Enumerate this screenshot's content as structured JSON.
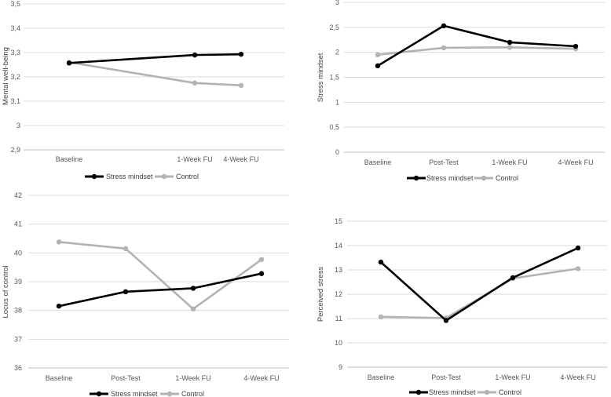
{
  "colors": {
    "stress_mindset": "#000000",
    "control": "#b3b3b3",
    "grid": "#d9d9d9",
    "axis": "#bfbfbf"
  },
  "legend": {
    "series_1": "Stress mindset",
    "series_2": "Control"
  },
  "chart_data": [
    {
      "type": "line",
      "title": "",
      "xlabel": "",
      "ylabel": "Mental well-being",
      "categories": [
        "Baseline",
        "1-Week FU",
        "4-Week FU"
      ],
      "ylim": [
        2.9,
        3.5
      ],
      "yticks": [
        "2,9",
        "3",
        "3,1",
        "3,2",
        "3,3",
        "3,4",
        "3,5"
      ],
      "grid": true,
      "legend_position": "bottom",
      "series": [
        {
          "name": "Stress mindset",
          "values": [
            3.257,
            3.29,
            3.293
          ]
        },
        {
          "name": "Control",
          "values": [
            3.26,
            3.175,
            3.165
          ]
        }
      ]
    },
    {
      "type": "line",
      "title": "",
      "xlabel": "",
      "ylabel": "Stress mindset",
      "categories": [
        "Baseline",
        "Post-Test",
        "1-Week FU",
        "4-Week FU"
      ],
      "ylim": [
        0,
        3
      ],
      "yticks": [
        "0",
        "0,5",
        "1",
        "1,5",
        "2",
        "2,5",
        "3"
      ],
      "grid": true,
      "legend_position": "bottom",
      "series": [
        {
          "name": "Stress mindset",
          "values": [
            1.73,
            2.53,
            2.2,
            2.12
          ]
        },
        {
          "name": "Control",
          "values": [
            1.95,
            2.09,
            2.1,
            2.07
          ]
        }
      ]
    },
    {
      "type": "line",
      "title": "",
      "xlabel": "",
      "ylabel": "Locus of control",
      "categories": [
        "Baseline",
        "Post-Test",
        "1-Week FU",
        "4-Week FU"
      ],
      "ylim": [
        36,
        42
      ],
      "yticks": [
        "36",
        "37",
        "38",
        "39",
        "40",
        "41",
        "42"
      ],
      "grid": true,
      "legend_position": "bottom",
      "series": [
        {
          "name": "Stress mindset",
          "values": [
            38.15,
            38.65,
            38.77,
            39.28
          ]
        },
        {
          "name": "Control",
          "values": [
            40.38,
            40.15,
            38.05,
            39.77
          ]
        }
      ]
    },
    {
      "type": "line",
      "title": "",
      "xlabel": "",
      "ylabel": "Perceived stress",
      "categories": [
        "Baseline",
        "Post-Test",
        "1-Week FU",
        "4-Week FU"
      ],
      "ylim": [
        9,
        15
      ],
      "yticks": [
        "9",
        "10",
        "11",
        "12",
        "13",
        "14",
        "15"
      ],
      "grid": true,
      "legend_position": "bottom",
      "series": [
        {
          "name": "Stress mindset",
          "values": [
            13.32,
            10.92,
            12.68,
            13.9
          ]
        },
        {
          "name": "Control",
          "values": [
            11.07,
            11.02,
            12.65,
            13.05
          ]
        }
      ]
    }
  ]
}
